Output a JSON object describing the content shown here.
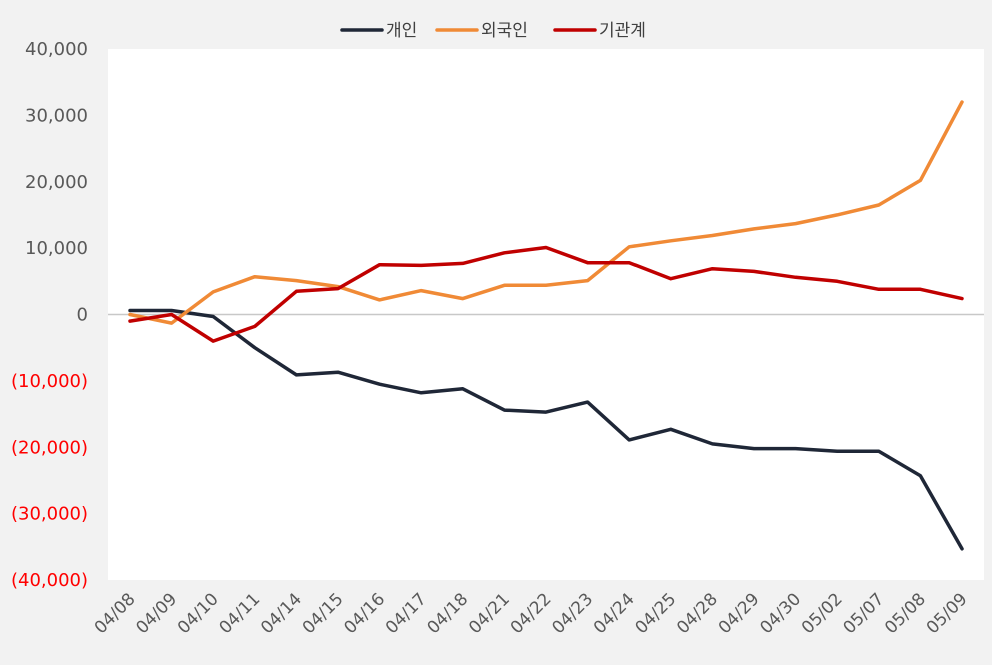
{
  "chart_data": {
    "type": "line",
    "title": "",
    "xlabel": "",
    "ylabel": "",
    "ylim": [
      -40000,
      40000
    ],
    "y_ticks": [
      40000,
      30000,
      20000,
      10000,
      0,
      -10000,
      -20000,
      -30000,
      -40000
    ],
    "y_tick_labels": [
      "40,000",
      "30,000",
      "20,000",
      "10,000",
      "0",
      "(10,000)",
      "(20,000)",
      "(30,000)",
      "(40,000)"
    ],
    "legend_position": "top-center",
    "grid": false,
    "zero_line": true,
    "categories": [
      "04/08",
      "04/09",
      "04/10",
      "04/11",
      "04/14",
      "04/15",
      "04/16",
      "04/17",
      "04/18",
      "04/21",
      "04/22",
      "04/23",
      "04/24",
      "04/25",
      "04/28",
      "04/29",
      "04/30",
      "05/02",
      "05/07",
      "05/08",
      "05/09"
    ],
    "series": [
      {
        "name": "개인",
        "color": "#1f2737",
        "values": [
          600,
          600,
          -300,
          -5000,
          -9100,
          -8700,
          -10500,
          -11800,
          -11200,
          -14400,
          -14700,
          -13200,
          -18900,
          -17300,
          -19500,
          -20200,
          -20200,
          -20600,
          -20600,
          -24300,
          -35300
        ]
      },
      {
        "name": "외국인",
        "color": "#f08a36",
        "values": [
          0,
          -1300,
          3400,
          5700,
          5100,
          4200,
          2200,
          3600,
          2400,
          4400,
          4400,
          5100,
          10200,
          11100,
          11900,
          12900,
          13700,
          15000,
          16500,
          20200,
          32000
        ]
      },
      {
        "name": "기관계",
        "color": "#c00000",
        "values": [
          -1000,
          0,
          -4000,
          -1800,
          3500,
          3900,
          7500,
          7400,
          7700,
          9300,
          10100,
          7800,
          7800,
          5400,
          6900,
          6500,
          5600,
          5000,
          3800,
          3800,
          2400
        ]
      }
    ]
  }
}
